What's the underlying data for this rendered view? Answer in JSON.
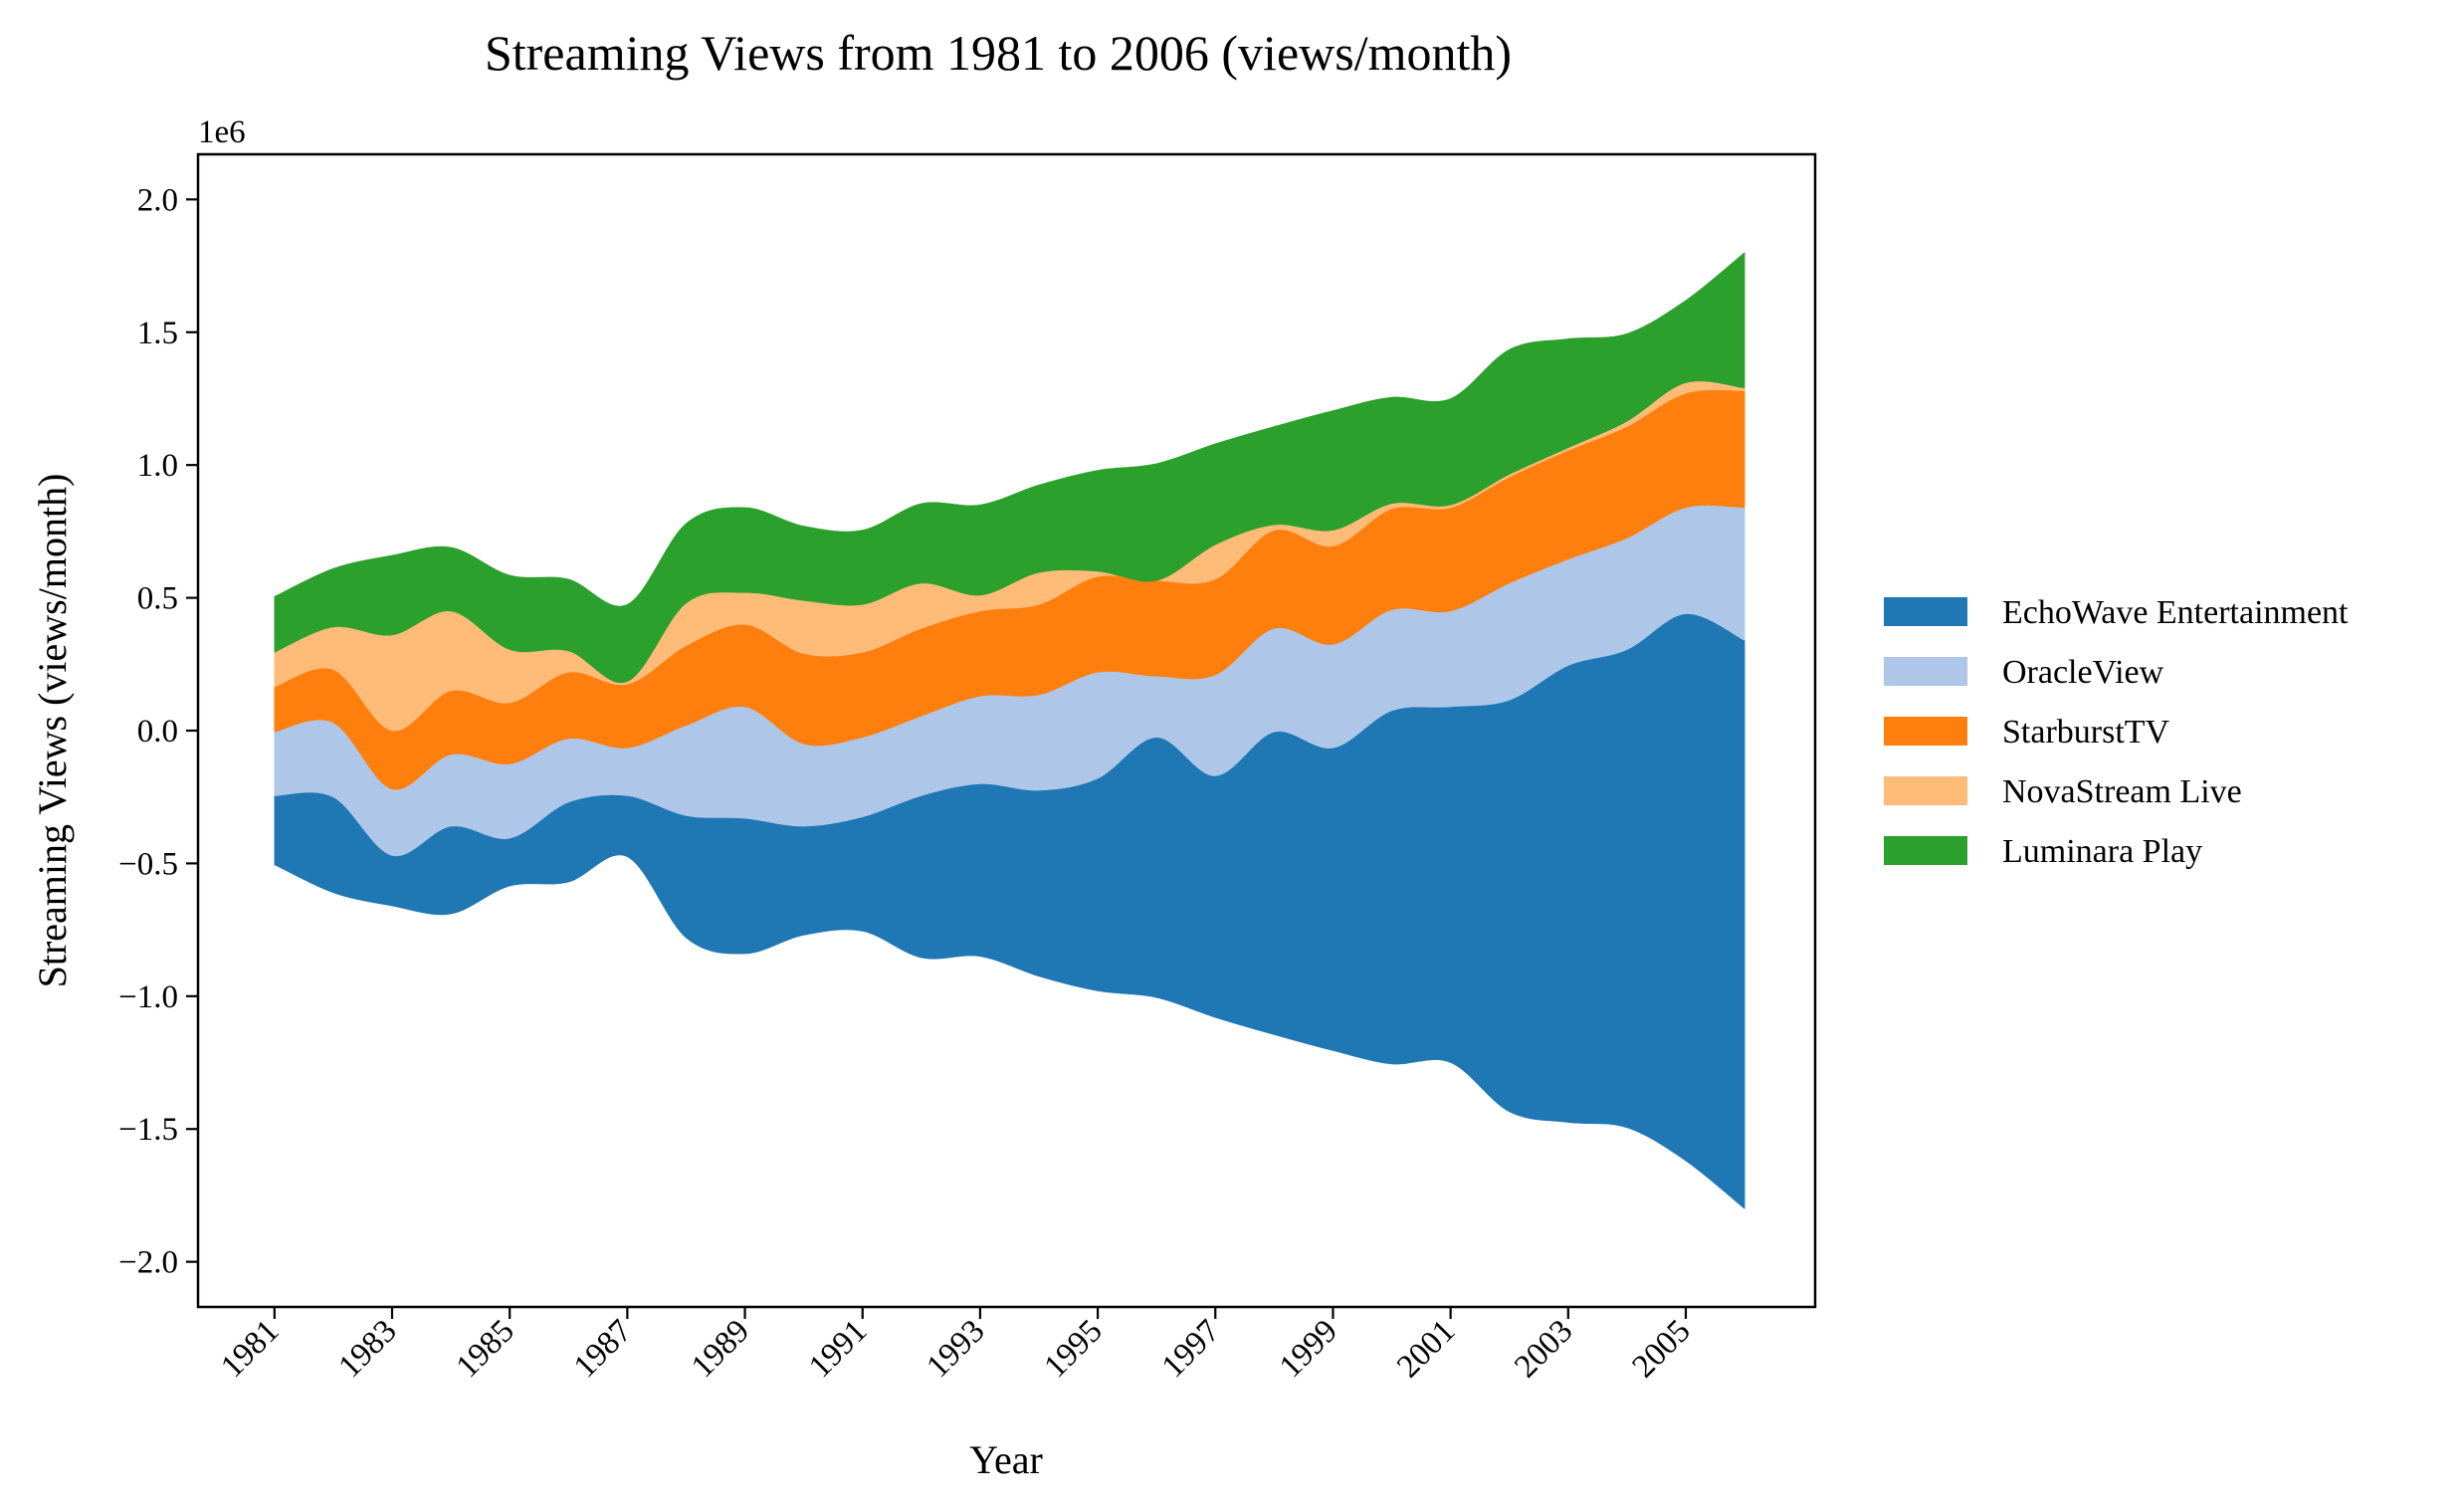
{
  "chart_data": {
    "type": "area",
    "title": "Streaming Views from 1981 to 2006 (views/month)",
    "xlabel": "Year",
    "ylabel": "Streaming Views (views/month)",
    "offset_text": "1e6",
    "x": [
      1981,
      1982,
      1983,
      1984,
      1985,
      1986,
      1987,
      1988,
      1989,
      1990,
      1991,
      1992,
      1993,
      1994,
      1995,
      1996,
      1997,
      1998,
      1999,
      2000,
      2001,
      2002,
      2003,
      2004,
      2005,
      2006
    ],
    "xticks": [
      "1981",
      "1983",
      "1985",
      "1987",
      "1989",
      "1991",
      "1993",
      "1995",
      "1997",
      "1999",
      "2001",
      "2003",
      "2005"
    ],
    "yticks": [
      "−2.0",
      "−1.5",
      "−1.0",
      "−0.5",
      "0.0",
      "0.5",
      "1.0",
      "1.5",
      "2.0"
    ],
    "ytick_values": [
      -2.0,
      -1.5,
      -1.0,
      -0.5,
      0.0,
      0.5,
      1.0,
      1.5,
      2.0
    ],
    "ylim": [
      -2.17,
      2.17
    ],
    "xlim": [
      1979.7,
      2007.2
    ],
    "baseline": "symmetric",
    "legend_position": "center-right, outside plot",
    "series": [
      {
        "name": "EchoWave Entertainment",
        "color": "#1f77b4",
        "values": [
          260000,
          360000,
          190000,
          330000,
          180000,
          300000,
          230000,
          460000,
          510000,
          410000,
          430000,
          610000,
          650000,
          700000,
          800000,
          980000,
          910000,
          1140000,
          1140000,
          1330000,
          1340000,
          1550000,
          1720000,
          1800000,
          2060000,
          2140000
        ]
      },
      {
        "name": "OracleView",
        "color": "#aec7e8",
        "values": [
          240000,
          280000,
          250000,
          270000,
          280000,
          240000,
          180000,
          340000,
          420000,
          310000,
          300000,
          300000,
          330000,
          360000,
          400000,
          230000,
          380000,
          390000,
          390000,
          380000,
          360000,
          440000,
          400000,
          420000,
          400000,
          500000
        ]
      },
      {
        "name": "StarburstTV",
        "color": "#ff7f0e",
        "values": [
          170000,
          200000,
          220000,
          240000,
          230000,
          250000,
          240000,
          300000,
          310000,
          340000,
          320000,
          330000,
          320000,
          340000,
          360000,
          360000,
          360000,
          370000,
          370000,
          380000,
          390000,
          400000,
          410000,
          420000,
          430000,
          440000
        ]
      },
      {
        "name": "NovaStream Live",
        "color": "#ffbb78",
        "values": [
          130000,
          160000,
          360000,
          300000,
          200000,
          80000,
          10000,
          160000,
          120000,
          200000,
          180000,
          170000,
          60000,
          120000,
          20000,
          0,
          130000,
          20000,
          60000,
          20000,
          10000,
          10000,
          10000,
          20000,
          40000,
          10000
        ]
      },
      {
        "name": "Luminara Play",
        "color": "#2ca02c",
        "values": [
          210000,
          220000,
          300000,
          240000,
          280000,
          270000,
          290000,
          300000,
          320000,
          280000,
          280000,
          300000,
          340000,
          330000,
          380000,
          440000,
          380000,
          370000,
          450000,
          400000,
          400000,
          470000,
          410000,
          330000,
          310000,
          510000
        ]
      }
    ]
  }
}
